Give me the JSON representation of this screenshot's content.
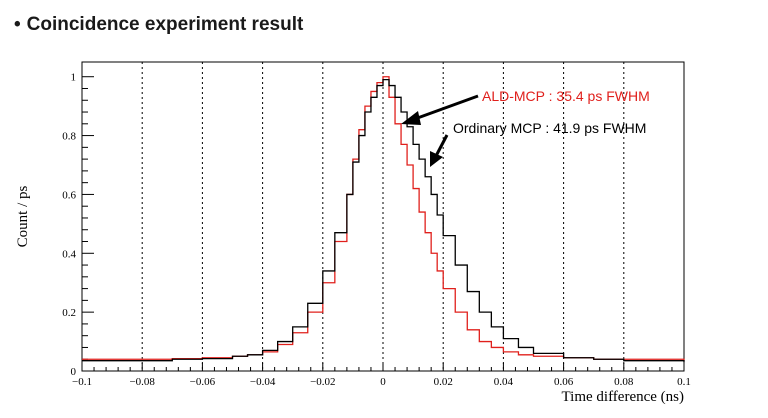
{
  "page": {
    "title": "Coincidence experiment result",
    "bullet": "•"
  },
  "chart_data": {
    "type": "line",
    "xlabel": "Time difference (ns)",
    "ylabel": "Count / ps",
    "xlim": [
      -0.1,
      0.1
    ],
    "ylim": [
      0,
      1.05
    ],
    "x_ticks": [
      -0.1,
      -0.08,
      -0.06,
      -0.04,
      -0.02,
      0,
      0.02,
      0.04,
      0.06,
      0.08,
      0.1
    ],
    "x_tick_labels": [
      "−0.1",
      "−0.08",
      "−0.06",
      "−0.04",
      "−0.02",
      "0",
      "0.02",
      "0.04",
      "0.06",
      "0.08",
      "0.1"
    ],
    "y_ticks": [
      0,
      0.2,
      0.4,
      0.6,
      0.8,
      1
    ],
    "y_tick_labels": [
      "0",
      "0.2",
      "0.4",
      "0.6",
      "0.8",
      "1"
    ],
    "grid": "vertical-dotted",
    "series": [
      {
        "name": "ALD-MCP : 35.4 ps FWHM",
        "color": "#e0201c",
        "x": [
          -0.1,
          -0.09,
          -0.08,
          -0.07,
          -0.06,
          -0.05,
          -0.045,
          -0.04,
          -0.035,
          -0.03,
          -0.025,
          -0.02,
          -0.016,
          -0.012,
          -0.01,
          -0.008,
          -0.006,
          -0.004,
          -0.002,
          0,
          0.002,
          0.004,
          0.006,
          0.008,
          0.01,
          0.012,
          0.014,
          0.016,
          0.018,
          0.02,
          0.024,
          0.028,
          0.032,
          0.036,
          0.04,
          0.045,
          0.05,
          0.06,
          0.07,
          0.08,
          0.09,
          0.1
        ],
        "y": [
          0.04,
          0.04,
          0.04,
          0.042,
          0.045,
          0.05,
          0.055,
          0.065,
          0.09,
          0.13,
          0.2,
          0.3,
          0.44,
          0.6,
          0.72,
          0.82,
          0.9,
          0.95,
          0.98,
          1.0,
          0.93,
          0.84,
          0.77,
          0.7,
          0.62,
          0.54,
          0.47,
          0.4,
          0.34,
          0.28,
          0.2,
          0.14,
          0.1,
          0.08,
          0.065,
          0.055,
          0.05,
          0.045,
          0.04,
          0.04,
          0.04,
          0.035
        ]
      },
      {
        "name": "Ordinary MCP : 41.9 ps FWHM",
        "color": "#000000",
        "x": [
          -0.1,
          -0.09,
          -0.08,
          -0.07,
          -0.06,
          -0.05,
          -0.045,
          -0.04,
          -0.035,
          -0.03,
          -0.025,
          -0.02,
          -0.016,
          -0.012,
          -0.01,
          -0.008,
          -0.006,
          -0.004,
          -0.002,
          0,
          0.002,
          0.004,
          0.006,
          0.008,
          0.01,
          0.012,
          0.014,
          0.016,
          0.018,
          0.02,
          0.024,
          0.028,
          0.032,
          0.036,
          0.04,
          0.045,
          0.05,
          0.06,
          0.07,
          0.08,
          0.09,
          0.1
        ],
        "y": [
          0.035,
          0.035,
          0.035,
          0.04,
          0.042,
          0.05,
          0.055,
          0.07,
          0.1,
          0.15,
          0.23,
          0.34,
          0.47,
          0.6,
          0.71,
          0.8,
          0.88,
          0.93,
          0.97,
          0.99,
          0.97,
          0.93,
          0.88,
          0.83,
          0.77,
          0.72,
          0.66,
          0.6,
          0.53,
          0.46,
          0.36,
          0.27,
          0.2,
          0.15,
          0.11,
          0.08,
          0.06,
          0.045,
          0.04,
          0.035,
          0.035,
          0.03
        ]
      }
    ],
    "annotations": [
      {
        "text": "ALD-MCP : 35.4 ps FWHM",
        "color": "#e0201c"
      },
      {
        "text": "Ordinary MCP : 41.9 ps FWHM",
        "color": "#000000"
      }
    ]
  }
}
